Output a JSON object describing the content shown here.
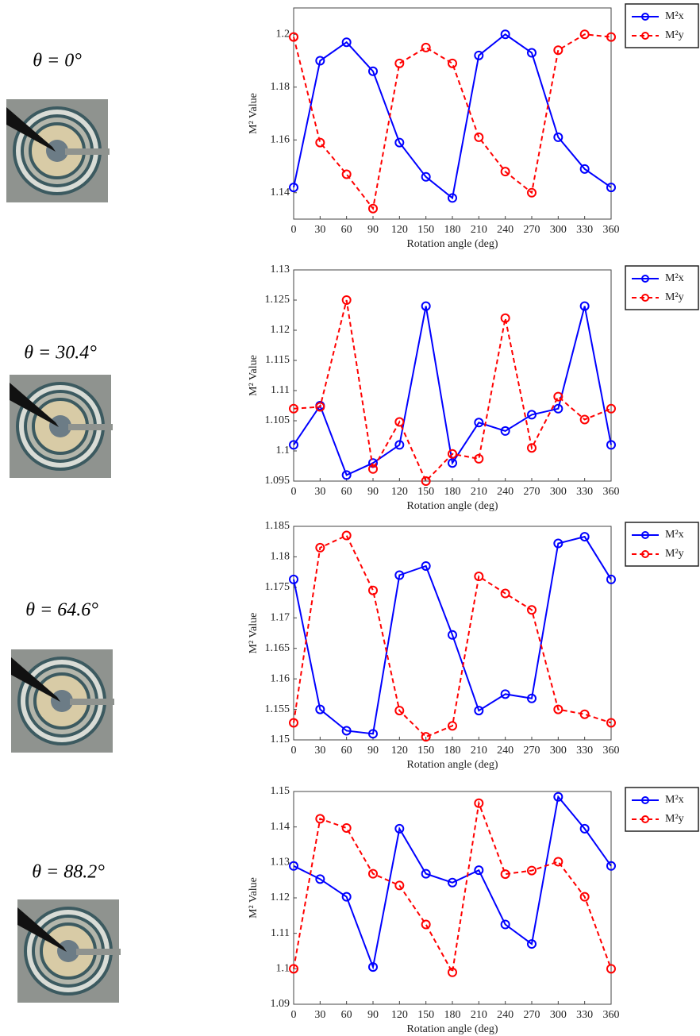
{
  "chart_data": [
    {
      "type": "line",
      "annotation": "θ = 0°",
      "xlabel": "Rotation angle (deg)",
      "ylabel": "M² Value",
      "x": [
        0,
        30,
        60,
        90,
        120,
        150,
        180,
        210,
        240,
        270,
        300,
        330,
        360
      ],
      "xlim": [
        0,
        360
      ],
      "xticks": [
        0,
        30,
        60,
        90,
        120,
        150,
        180,
        210,
        240,
        270,
        300,
        330,
        360
      ],
      "ylim": [
        1.13,
        1.21
      ],
      "yticks": [
        1.14,
        1.16,
        1.18,
        1.2
      ],
      "grid": false,
      "legend": "right",
      "series": [
        {
          "name": "M²x",
          "color": "#0000ff",
          "dash": false,
          "values": [
            1.142,
            1.19,
            1.197,
            1.186,
            1.159,
            1.146,
            1.138,
            1.192,
            1.2,
            1.193,
            1.161,
            1.149,
            1.142
          ]
        },
        {
          "name": "M²y",
          "color": "#ff0000",
          "dash": true,
          "values": [
            1.199,
            1.159,
            1.147,
            1.134,
            1.189,
            1.195,
            1.189,
            1.161,
            1.148,
            1.14,
            1.194,
            1.2,
            1.199
          ]
        }
      ]
    },
    {
      "type": "line",
      "annotation": "θ = 30.4°",
      "xlabel": "Rotation angle (deg)",
      "ylabel": "M² Value",
      "x": [
        0,
        30,
        60,
        90,
        120,
        150,
        180,
        210,
        240,
        270,
        300,
        330,
        360
      ],
      "xlim": [
        0,
        360
      ],
      "xticks": [
        0,
        30,
        60,
        90,
        120,
        150,
        180,
        210,
        240,
        270,
        300,
        330,
        360
      ],
      "ylim": [
        1.095,
        1.13
      ],
      "yticks": [
        1.095,
        1.1,
        1.105,
        1.11,
        1.115,
        1.12,
        1.125,
        1.13
      ],
      "grid": false,
      "legend": "right",
      "series": [
        {
          "name": "M²x",
          "color": "#0000ff",
          "dash": false,
          "values": [
            1.101,
            1.1075,
            1.096,
            1.098,
            1.101,
            1.124,
            1.098,
            1.1047,
            1.1033,
            1.106,
            1.107,
            1.124,
            1.101
          ]
        },
        {
          "name": "M²y",
          "color": "#ff0000",
          "dash": true,
          "values": [
            1.107,
            1.1073,
            1.125,
            1.097,
            1.1048,
            1.095,
            1.0995,
            1.0987,
            1.122,
            1.1005,
            1.109,
            1.1052,
            1.107
          ]
        }
      ]
    },
    {
      "type": "line",
      "annotation": "θ = 64.6°",
      "xlabel": "Rotation angle (deg)",
      "ylabel": "M² Value",
      "x": [
        0,
        30,
        60,
        90,
        120,
        150,
        180,
        210,
        240,
        270,
        300,
        330,
        360
      ],
      "xlim": [
        0,
        360
      ],
      "xticks": [
        0,
        30,
        60,
        90,
        120,
        150,
        180,
        210,
        240,
        270,
        300,
        330,
        360
      ],
      "ylim": [
        1.15,
        1.185
      ],
      "yticks": [
        1.15,
        1.155,
        1.16,
        1.165,
        1.17,
        1.175,
        1.18,
        1.185
      ],
      "grid": false,
      "legend": "right",
      "series": [
        {
          "name": "M²x",
          "color": "#0000ff",
          "dash": false,
          "values": [
            1.1763,
            1.155,
            1.1515,
            1.151,
            1.177,
            1.1785,
            1.1672,
            1.1548,
            1.1575,
            1.1568,
            1.1822,
            1.1833,
            1.1763
          ]
        },
        {
          "name": "M²y",
          "color": "#ff0000",
          "dash": true,
          "values": [
            1.1528,
            1.1815,
            1.1835,
            1.1745,
            1.1548,
            1.1505,
            1.1523,
            1.1768,
            1.174,
            1.1713,
            1.155,
            1.1542,
            1.1528
          ]
        }
      ]
    },
    {
      "type": "line",
      "annotation": "θ = 88.2°",
      "xlabel": "Rotation angle (deg)",
      "ylabel": "M² Value",
      "x": [
        0,
        30,
        60,
        90,
        120,
        150,
        180,
        210,
        240,
        270,
        300,
        330,
        360
      ],
      "xlim": [
        0,
        360
      ],
      "xticks": [
        0,
        30,
        60,
        90,
        120,
        150,
        180,
        210,
        240,
        270,
        300,
        330,
        360
      ],
      "ylim": [
        1.09,
        1.15
      ],
      "yticks": [
        1.09,
        1.1,
        1.11,
        1.12,
        1.13,
        1.14,
        1.15
      ],
      "grid": false,
      "legend": "right",
      "series": [
        {
          "name": "M²x",
          "color": "#0000ff",
          "dash": false,
          "values": [
            1.129,
            1.1253,
            1.1203,
            1.1005,
            1.1395,
            1.1268,
            1.1243,
            1.1278,
            1.1125,
            1.107,
            1.1485,
            1.1395,
            1.129
          ]
        },
        {
          "name": "M²y",
          "color": "#ff0000",
          "dash": true,
          "values": [
            1.1,
            1.1423,
            1.1397,
            1.1268,
            1.1235,
            1.1125,
            1.099,
            1.1467,
            1.1267,
            1.1277,
            1.1302,
            1.1203,
            1.1
          ]
        }
      ]
    }
  ]
}
